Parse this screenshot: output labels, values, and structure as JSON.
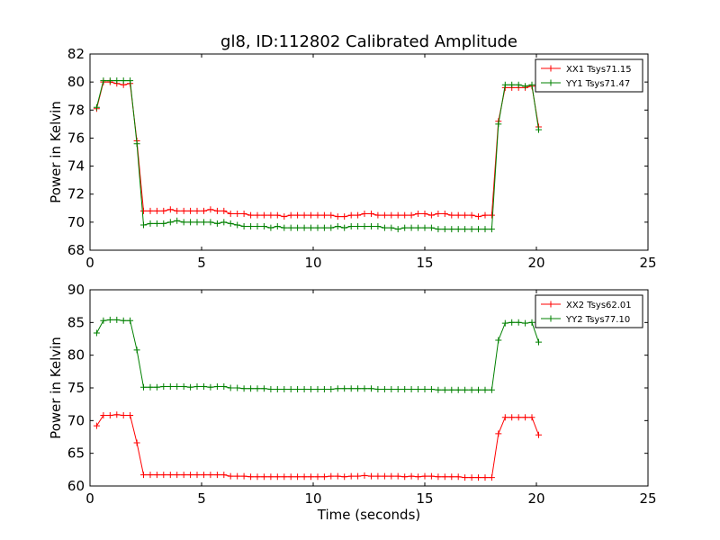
{
  "title": "gl8, ID:112802 Calibrated Amplitude",
  "colors": {
    "xx": "#ff0000",
    "yy": "#008000"
  },
  "chart_data": [
    {
      "type": "line",
      "title": "gl8, ID:112802 Calibrated Amplitude",
      "xlabel": "",
      "ylabel": "Power in Kelvin",
      "xlim": [
        0,
        25
      ],
      "ylim": [
        68,
        82
      ],
      "xticks": [
        "0",
        "5",
        "10",
        "15",
        "20",
        "25"
      ],
      "yticks": [
        "68",
        "70",
        "72",
        "74",
        "76",
        "78",
        "80",
        "82"
      ],
      "legend_position": "top-right",
      "x": [
        0.3,
        0.6,
        0.9,
        1.2,
        1.5,
        1.8,
        2.1,
        2.4,
        2.7,
        3.0,
        3.3,
        3.6,
        3.9,
        4.2,
        4.5,
        4.8,
        5.1,
        5.4,
        5.7,
        6.0,
        6.3,
        6.6,
        6.9,
        7.2,
        7.5,
        7.8,
        8.1,
        8.4,
        8.7,
        9.0,
        9.3,
        9.6,
        9.9,
        10.2,
        10.5,
        10.8,
        11.1,
        11.4,
        11.7,
        12.0,
        12.3,
        12.6,
        12.9,
        13.2,
        13.5,
        13.8,
        14.1,
        14.4,
        14.7,
        15.0,
        15.3,
        15.6,
        15.9,
        16.2,
        16.5,
        16.8,
        17.1,
        17.4,
        17.7,
        18.0,
        18.3,
        18.6,
        18.9,
        19.2,
        19.5,
        19.8,
        20.1
      ],
      "series": [
        {
          "name": "XX1 Tsys71.15",
          "color": "#ff0000",
          "values": [
            78.1,
            80.0,
            80.0,
            79.9,
            79.8,
            79.9,
            75.8,
            70.8,
            70.8,
            70.8,
            70.8,
            70.9,
            70.8,
            70.8,
            70.8,
            70.8,
            70.8,
            70.9,
            70.8,
            70.8,
            70.6,
            70.6,
            70.6,
            70.5,
            70.5,
            70.5,
            70.5,
            70.5,
            70.4,
            70.5,
            70.5,
            70.5,
            70.5,
            70.5,
            70.5,
            70.5,
            70.4,
            70.4,
            70.5,
            70.5,
            70.6,
            70.6,
            70.5,
            70.5,
            70.5,
            70.5,
            70.5,
            70.5,
            70.6,
            70.6,
            70.5,
            70.6,
            70.6,
            70.5,
            70.5,
            70.5,
            70.5,
            70.4,
            70.5,
            70.5,
            77.2,
            79.6,
            79.6,
            79.6,
            79.6,
            79.7,
            76.8
          ]
        },
        {
          "name": "YY1 Tsys71.47",
          "color": "#008000",
          "values": [
            78.2,
            80.1,
            80.1,
            80.1,
            80.1,
            80.1,
            75.6,
            69.8,
            69.9,
            69.9,
            69.9,
            70.0,
            70.1,
            70.0,
            70.0,
            70.0,
            70.0,
            70.0,
            69.9,
            70.0,
            69.9,
            69.8,
            69.7,
            69.7,
            69.7,
            69.7,
            69.6,
            69.7,
            69.6,
            69.6,
            69.6,
            69.6,
            69.6,
            69.6,
            69.6,
            69.6,
            69.7,
            69.6,
            69.7,
            69.7,
            69.7,
            69.7,
            69.7,
            69.6,
            69.6,
            69.5,
            69.6,
            69.6,
            69.6,
            69.6,
            69.6,
            69.5,
            69.5,
            69.5,
            69.5,
            69.5,
            69.5,
            69.5,
            69.5,
            69.5,
            77.0,
            79.8,
            79.8,
            79.8,
            79.7,
            79.8,
            76.6
          ]
        }
      ]
    },
    {
      "type": "line",
      "title": "",
      "xlabel": "Time (seconds)",
      "ylabel": "Power in Kelvin",
      "xlim": [
        0,
        25
      ],
      "ylim": [
        60,
        90
      ],
      "xticks": [
        "0",
        "5",
        "10",
        "15",
        "20",
        "25"
      ],
      "yticks": [
        "60",
        "65",
        "70",
        "75",
        "80",
        "85",
        "90"
      ],
      "legend_position": "top-right",
      "x": [
        0.3,
        0.6,
        0.9,
        1.2,
        1.5,
        1.8,
        2.1,
        2.4,
        2.7,
        3.0,
        3.3,
        3.6,
        3.9,
        4.2,
        4.5,
        4.8,
        5.1,
        5.4,
        5.7,
        6.0,
        6.3,
        6.6,
        6.9,
        7.2,
        7.5,
        7.8,
        8.1,
        8.4,
        8.7,
        9.0,
        9.3,
        9.6,
        9.9,
        10.2,
        10.5,
        10.8,
        11.1,
        11.4,
        11.7,
        12.0,
        12.3,
        12.6,
        12.9,
        13.2,
        13.5,
        13.8,
        14.1,
        14.4,
        14.7,
        15.0,
        15.3,
        15.6,
        15.9,
        16.2,
        16.5,
        16.8,
        17.1,
        17.4,
        17.7,
        18.0,
        18.3,
        18.6,
        18.9,
        19.2,
        19.5,
        19.8,
        20.1
      ],
      "series": [
        {
          "name": "XX2 Tsys62.01",
          "color": "#ff0000",
          "values": [
            69.2,
            70.8,
            70.8,
            70.9,
            70.8,
            70.8,
            66.6,
            61.7,
            61.7,
            61.7,
            61.7,
            61.7,
            61.7,
            61.7,
            61.7,
            61.7,
            61.7,
            61.7,
            61.7,
            61.7,
            61.5,
            61.5,
            61.5,
            61.4,
            61.4,
            61.4,
            61.4,
            61.4,
            61.4,
            61.4,
            61.4,
            61.4,
            61.4,
            61.4,
            61.4,
            61.5,
            61.5,
            61.4,
            61.5,
            61.5,
            61.6,
            61.5,
            61.5,
            61.5,
            61.5,
            61.5,
            61.4,
            61.5,
            61.4,
            61.5,
            61.5,
            61.4,
            61.4,
            61.4,
            61.4,
            61.3,
            61.3,
            61.3,
            61.3,
            61.3,
            68.0,
            70.5,
            70.5,
            70.5,
            70.5,
            70.5,
            67.8
          ]
        },
        {
          "name": "YY2 Tsys77.10",
          "color": "#008000",
          "values": [
            83.4,
            85.3,
            85.4,
            85.4,
            85.3,
            85.3,
            80.8,
            75.1,
            75.1,
            75.1,
            75.2,
            75.2,
            75.2,
            75.2,
            75.1,
            75.2,
            75.2,
            75.1,
            75.2,
            75.2,
            75.0,
            75.0,
            74.9,
            74.9,
            74.9,
            74.9,
            74.8,
            74.8,
            74.8,
            74.8,
            74.8,
            74.8,
            74.8,
            74.8,
            74.8,
            74.8,
            74.9,
            74.9,
            74.9,
            74.9,
            74.9,
            74.9,
            74.8,
            74.8,
            74.8,
            74.8,
            74.8,
            74.8,
            74.8,
            74.8,
            74.8,
            74.7,
            74.7,
            74.7,
            74.7,
            74.7,
            74.7,
            74.7,
            74.7,
            74.7,
            82.3,
            84.9,
            85.0,
            85.0,
            84.9,
            85.0,
            82.0
          ]
        }
      ]
    }
  ]
}
